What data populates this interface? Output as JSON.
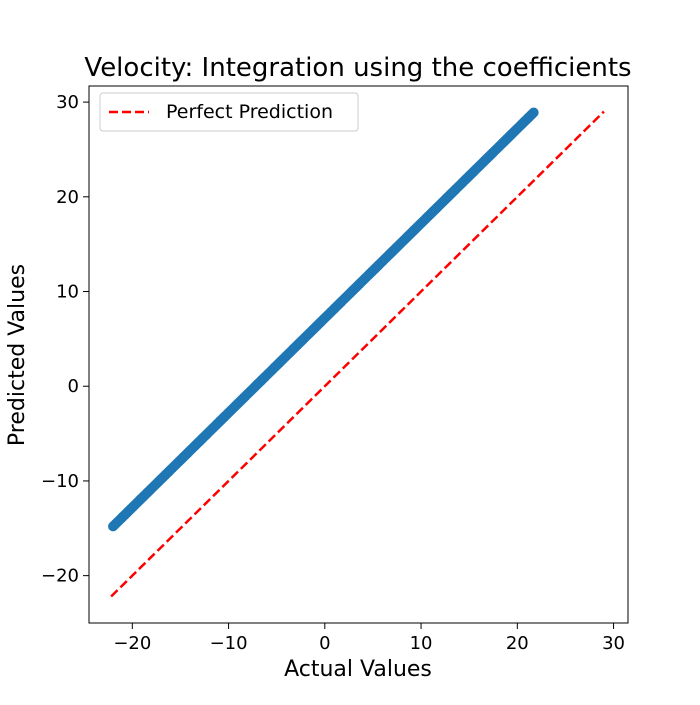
{
  "chart_data": {
    "type": "scatter",
    "title": "Velocity: Integration using the coefficients",
    "xlabel": "Actual Values",
    "ylabel": "Predicted Values",
    "xlim": [
      -24.5,
      31.5
    ],
    "ylim": [
      -25.0,
      31.7
    ],
    "xticks": [
      -20,
      -10,
      0,
      10,
      20,
      30
    ],
    "yticks": [
      -20,
      -10,
      0,
      10,
      20,
      30
    ],
    "xtick_labels": [
      "−20",
      "−10",
      "0",
      "10",
      "20",
      "30"
    ],
    "ytick_labels": [
      "−20",
      "−10",
      "0",
      "10",
      "20",
      "30"
    ],
    "grid": false,
    "legend": {
      "position": "top-left",
      "entries": [
        "Perfect Prediction"
      ]
    },
    "series": [
      {
        "kind": "scatter",
        "color": "#1f77b4",
        "x_range": [
          -22.0,
          21.7
        ],
        "slope": 1.0,
        "intercept": 7.2,
        "point_count": 300
      },
      {
        "name": "Perfect Prediction",
        "kind": "line",
        "style": "dashed",
        "color": "#ff0000",
        "x": [
          -22.2,
          29.0
        ],
        "y": [
          -22.2,
          29.0
        ]
      }
    ]
  }
}
